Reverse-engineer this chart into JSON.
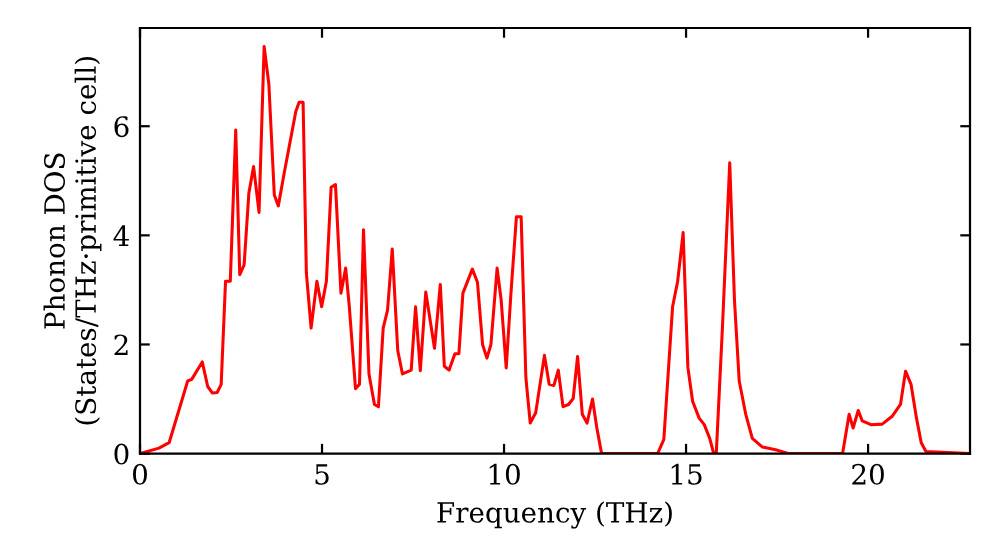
{
  "chart_data": {
    "type": "line",
    "xlabel": "Frequency (THz)",
    "ylabel": "Phonon DOS\n(States/THz·primitive cell)",
    "xlim": [
      0,
      22.8
    ],
    "ylim": [
      0,
      7.8
    ],
    "xticks": [
      0,
      5,
      10,
      15,
      20
    ],
    "yticks": [
      0,
      2,
      4,
      6
    ],
    "grid": false,
    "legend": false,
    "marker": "none",
    "line_style": "solid",
    "series": [
      {
        "color": "#ff0000",
        "x": [
          0,
          0.52,
          0.8,
          1.31,
          1.42,
          1.71,
          1.86,
          1.99,
          2.12,
          2.23,
          2.35,
          2.48,
          2.63,
          2.74,
          2.86,
          2.99,
          3.12,
          3.27,
          3.41,
          3.54,
          3.69,
          3.8,
          3.95,
          4.28,
          4.37,
          4.48,
          4.57,
          4.7,
          4.86,
          4.99,
          5.12,
          5.25,
          5.37,
          5.52,
          5.65,
          5.75,
          5.92,
          6.03,
          6.14,
          6.29,
          6.44,
          6.55,
          6.68,
          6.8,
          6.93,
          7.08,
          7.21,
          7.45,
          7.57,
          7.7,
          7.85,
          8.09,
          8.25,
          8.36,
          8.49,
          8.65,
          8.76,
          8.87,
          9.13,
          9.27,
          9.41,
          9.53,
          9.64,
          9.81,
          9.92,
          10.06,
          10.19,
          10.34,
          10.47,
          10.6,
          10.72,
          10.87,
          11.11,
          11.24,
          11.37,
          11.49,
          11.62,
          11.77,
          11.9,
          12.02,
          12.15,
          12.28,
          12.43,
          12.55,
          12.68,
          14.22,
          14.39,
          14.63,
          14.77,
          14.92,
          15.05,
          15.18,
          15.36,
          15.5,
          15.65,
          15.76,
          15.83,
          16.0,
          16.2,
          16.33,
          16.46,
          16.64,
          16.82,
          17.1,
          17.46,
          17.83,
          19.3,
          19.48,
          19.59,
          19.73,
          19.84,
          20.08,
          20.39,
          20.67,
          20.89,
          21.03,
          21.18,
          21.33,
          21.46,
          21.59,
          22.78
        ],
        "values": [
          0,
          0.1,
          0.2,
          1.33,
          1.36,
          1.68,
          1.23,
          1.11,
          1.12,
          1.27,
          3.16,
          3.16,
          5.93,
          3.28,
          3.46,
          4.77,
          5.26,
          4.42,
          7.46,
          6.77,
          4.74,
          4.54,
          5.1,
          6.27,
          6.44,
          6.44,
          3.31,
          2.3,
          3.16,
          2.69,
          3.16,
          4.88,
          4.93,
          2.94,
          3.4,
          2.69,
          1.19,
          1.27,
          4.1,
          1.46,
          0.9,
          0.86,
          2.3,
          2.63,
          3.75,
          1.89,
          1.46,
          1.53,
          2.69,
          1.52,
          2.96,
          1.93,
          3.1,
          1.6,
          1.53,
          1.83,
          1.83,
          2.94,
          3.38,
          3.14,
          2.0,
          1.75,
          2.0,
          3.4,
          2.82,
          1.57,
          2.94,
          4.34,
          4.34,
          1.39,
          0.56,
          0.75,
          1.8,
          1.27,
          1.25,
          1.53,
          0.86,
          0.9,
          1.01,
          1.78,
          0.72,
          0.56,
          1.0,
          0.47,
          0,
          0,
          0.26,
          2.69,
          3.16,
          4.05,
          1.58,
          0.96,
          0.65,
          0.53,
          0.28,
          0,
          0,
          2.32,
          5.33,
          2.81,
          1.33,
          0.72,
          0.28,
          0.12,
          0.07,
          0,
          0,
          0.72,
          0.47,
          0.79,
          0.6,
          0.53,
          0.54,
          0.69,
          0.9,
          1.51,
          1.27,
          0.65,
          0.2,
          0.04,
          0
        ]
      }
    ]
  }
}
